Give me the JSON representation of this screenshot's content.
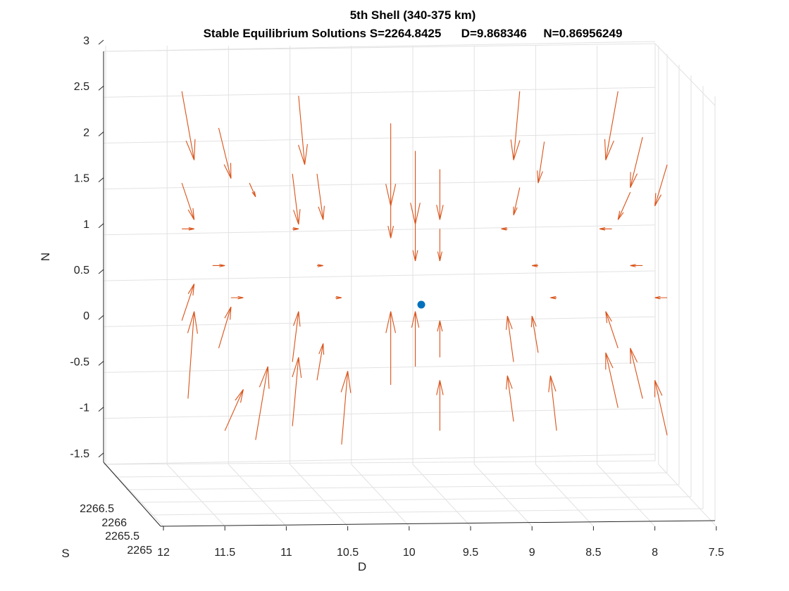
{
  "chart_data": {
    "type": "quiver3d",
    "title": "5th Shell (340-375 km)",
    "subtitle": "Stable Equilibrium Solutions S=2264.8425      D=9.868346     N=0.86956249",
    "xlabel": "D",
    "ylabel": "S",
    "zlabel": "N",
    "x_ticks": [
      "12",
      "11.5",
      "11",
      "10.5",
      "10",
      "9.5",
      "9",
      "8.5",
      "8",
      "7.5"
    ],
    "y_ticks": [
      "2265",
      "2265.5",
      "2266",
      "2266.5"
    ],
    "z_ticks": [
      "3",
      "2.5",
      "2",
      "1.5",
      "1",
      "0.5",
      "0",
      "-0.5",
      "-1",
      "-1.5"
    ],
    "xlim": [
      7.5,
      12
    ],
    "zlim": [
      -1.5,
      3
    ],
    "grid": true,
    "equilibrium_point": {
      "color": "#0072BD",
      "description": "stable equilibrium (projected)",
      "D": 9.868346,
      "N": 0.86956249
    },
    "colors": {
      "arrow": "#D95319",
      "point": "#0072BD",
      "grid": "#e2e2e2",
      "axis": "#262626"
    },
    "arrows_projected_DN": [
      {
        "D": 11.85,
        "N": 2.45,
        "dD": -0.1,
        "dN": -0.75
      },
      {
        "D": 11.55,
        "N": 2.05,
        "dD": -0.1,
        "dN": -0.55
      },
      {
        "D": 11.3,
        "N": 1.45,
        "dD": -0.05,
        "dN": -0.15
      },
      {
        "D": 11.85,
        "N": 1.45,
        "dD": -0.1,
        "dN": -0.4
      },
      {
        "D": 11.85,
        "N": 0.95,
        "dD": -0.1,
        "dN": 0.0
      },
      {
        "D": 11.6,
        "N": 0.55,
        "dD": -0.1,
        "dN": 0.0
      },
      {
        "D": 11.45,
        "N": 0.2,
        "dD": -0.1,
        "dN": 0.0
      },
      {
        "D": 11.85,
        "N": -0.05,
        "dD": -0.1,
        "dN": 0.4
      },
      {
        "D": 11.55,
        "N": -0.35,
        "dD": -0.1,
        "dN": 0.45
      },
      {
        "D": 11.5,
        "N": -1.25,
        "dD": -0.15,
        "dN": 0.45
      },
      {
        "D": 11.25,
        "N": -1.35,
        "dD": -0.1,
        "dN": 0.8
      },
      {
        "D": 11.8,
        "N": -0.9,
        "dD": -0.05,
        "dN": 0.95
      },
      {
        "D": 10.9,
        "N": 2.4,
        "dD": -0.05,
        "dN": -0.75
      },
      {
        "D": 10.95,
        "N": 1.55,
        "dD": -0.05,
        "dN": -0.55
      },
      {
        "D": 10.75,
        "N": 1.55,
        "dD": -0.05,
        "dN": -0.5
      },
      {
        "D": 10.95,
        "N": 0.95,
        "dD": -0.05,
        "dN": 0.0
      },
      {
        "D": 10.75,
        "N": 0.55,
        "dD": -0.05,
        "dN": 0.0
      },
      {
        "D": 10.6,
        "N": 0.2,
        "dD": -0.05,
        "dN": 0.0
      },
      {
        "D": 10.95,
        "N": -0.5,
        "dD": -0.05,
        "dN": 0.55
      },
      {
        "D": 10.95,
        "N": -1.2,
        "dD": -0.05,
        "dN": 0.75
      },
      {
        "D": 10.75,
        "N": -0.7,
        "dD": -0.05,
        "dN": 0.4
      },
      {
        "D": 10.55,
        "N": -1.4,
        "dD": -0.05,
        "dN": 0.8
      },
      {
        "D": 10.15,
        "N": 2.1,
        "dD": 0.0,
        "dN": -0.9
      },
      {
        "D": 10.15,
        "N": 1.3,
        "dD": 0.0,
        "dN": -0.45
      },
      {
        "D": 9.95,
        "N": 1.8,
        "dD": 0.0,
        "dN": -0.8
      },
      {
        "D": 9.95,
        "N": 1.0,
        "dD": 0.0,
        "dN": -0.4
      },
      {
        "D": 9.75,
        "N": 1.6,
        "dD": 0.0,
        "dN": -0.55
      },
      {
        "D": 9.75,
        "N": 0.95,
        "dD": 0.0,
        "dN": -0.35
      },
      {
        "D": 10.15,
        "N": -0.75,
        "dD": 0.0,
        "dN": 0.8
      },
      {
        "D": 9.95,
        "N": -0.55,
        "dD": 0.0,
        "dN": 0.6
      },
      {
        "D": 9.75,
        "N": -0.45,
        "dD": 0.0,
        "dN": 0.4
      },
      {
        "D": 9.75,
        "N": -1.25,
        "dD": 0.0,
        "dN": 0.55
      },
      {
        "D": 9.1,
        "N": 2.45,
        "dD": 0.05,
        "dN": -0.75
      },
      {
        "D": 8.9,
        "N": 1.9,
        "dD": 0.05,
        "dN": -0.45
      },
      {
        "D": 9.1,
        "N": 1.4,
        "dD": 0.05,
        "dN": -0.3
      },
      {
        "D": 9.2,
        "N": 0.95,
        "dD": 0.05,
        "dN": 0.0
      },
      {
        "D": 8.95,
        "N": 0.55,
        "dD": 0.05,
        "dN": 0.0
      },
      {
        "D": 8.8,
        "N": 0.2,
        "dD": 0.05,
        "dN": 0.0
      },
      {
        "D": 9.15,
        "N": -0.5,
        "dD": 0.05,
        "dN": 0.5
      },
      {
        "D": 8.95,
        "N": -0.4,
        "dD": 0.05,
        "dN": 0.4
      },
      {
        "D": 8.8,
        "N": -1.25,
        "dD": 0.05,
        "dN": 0.6
      },
      {
        "D": 9.15,
        "N": -1.15,
        "dD": 0.05,
        "dN": 0.5
      },
      {
        "D": 8.3,
        "N": 2.45,
        "dD": 0.1,
        "dN": -0.75
      },
      {
        "D": 8.1,
        "N": 1.95,
        "dD": 0.1,
        "dN": -0.55
      },
      {
        "D": 7.9,
        "N": 1.65,
        "dD": 0.1,
        "dN": -0.45
      },
      {
        "D": 8.2,
        "N": 1.35,
        "dD": 0.1,
        "dN": -0.3
      },
      {
        "D": 8.35,
        "N": 0.95,
        "dD": 0.1,
        "dN": 0.0
      },
      {
        "D": 8.1,
        "N": 0.55,
        "dD": 0.1,
        "dN": 0.0
      },
      {
        "D": 7.9,
        "N": 0.2,
        "dD": 0.1,
        "dN": 0.0
      },
      {
        "D": 8.3,
        "N": -0.35,
        "dD": 0.1,
        "dN": 0.4
      },
      {
        "D": 8.1,
        "N": -0.9,
        "dD": 0.1,
        "dN": 0.55
      },
      {
        "D": 7.9,
        "N": -1.3,
        "dD": 0.1,
        "dN": 0.6
      },
      {
        "D": 8.3,
        "N": -1.0,
        "dD": 0.1,
        "dN": 0.6
      }
    ]
  }
}
